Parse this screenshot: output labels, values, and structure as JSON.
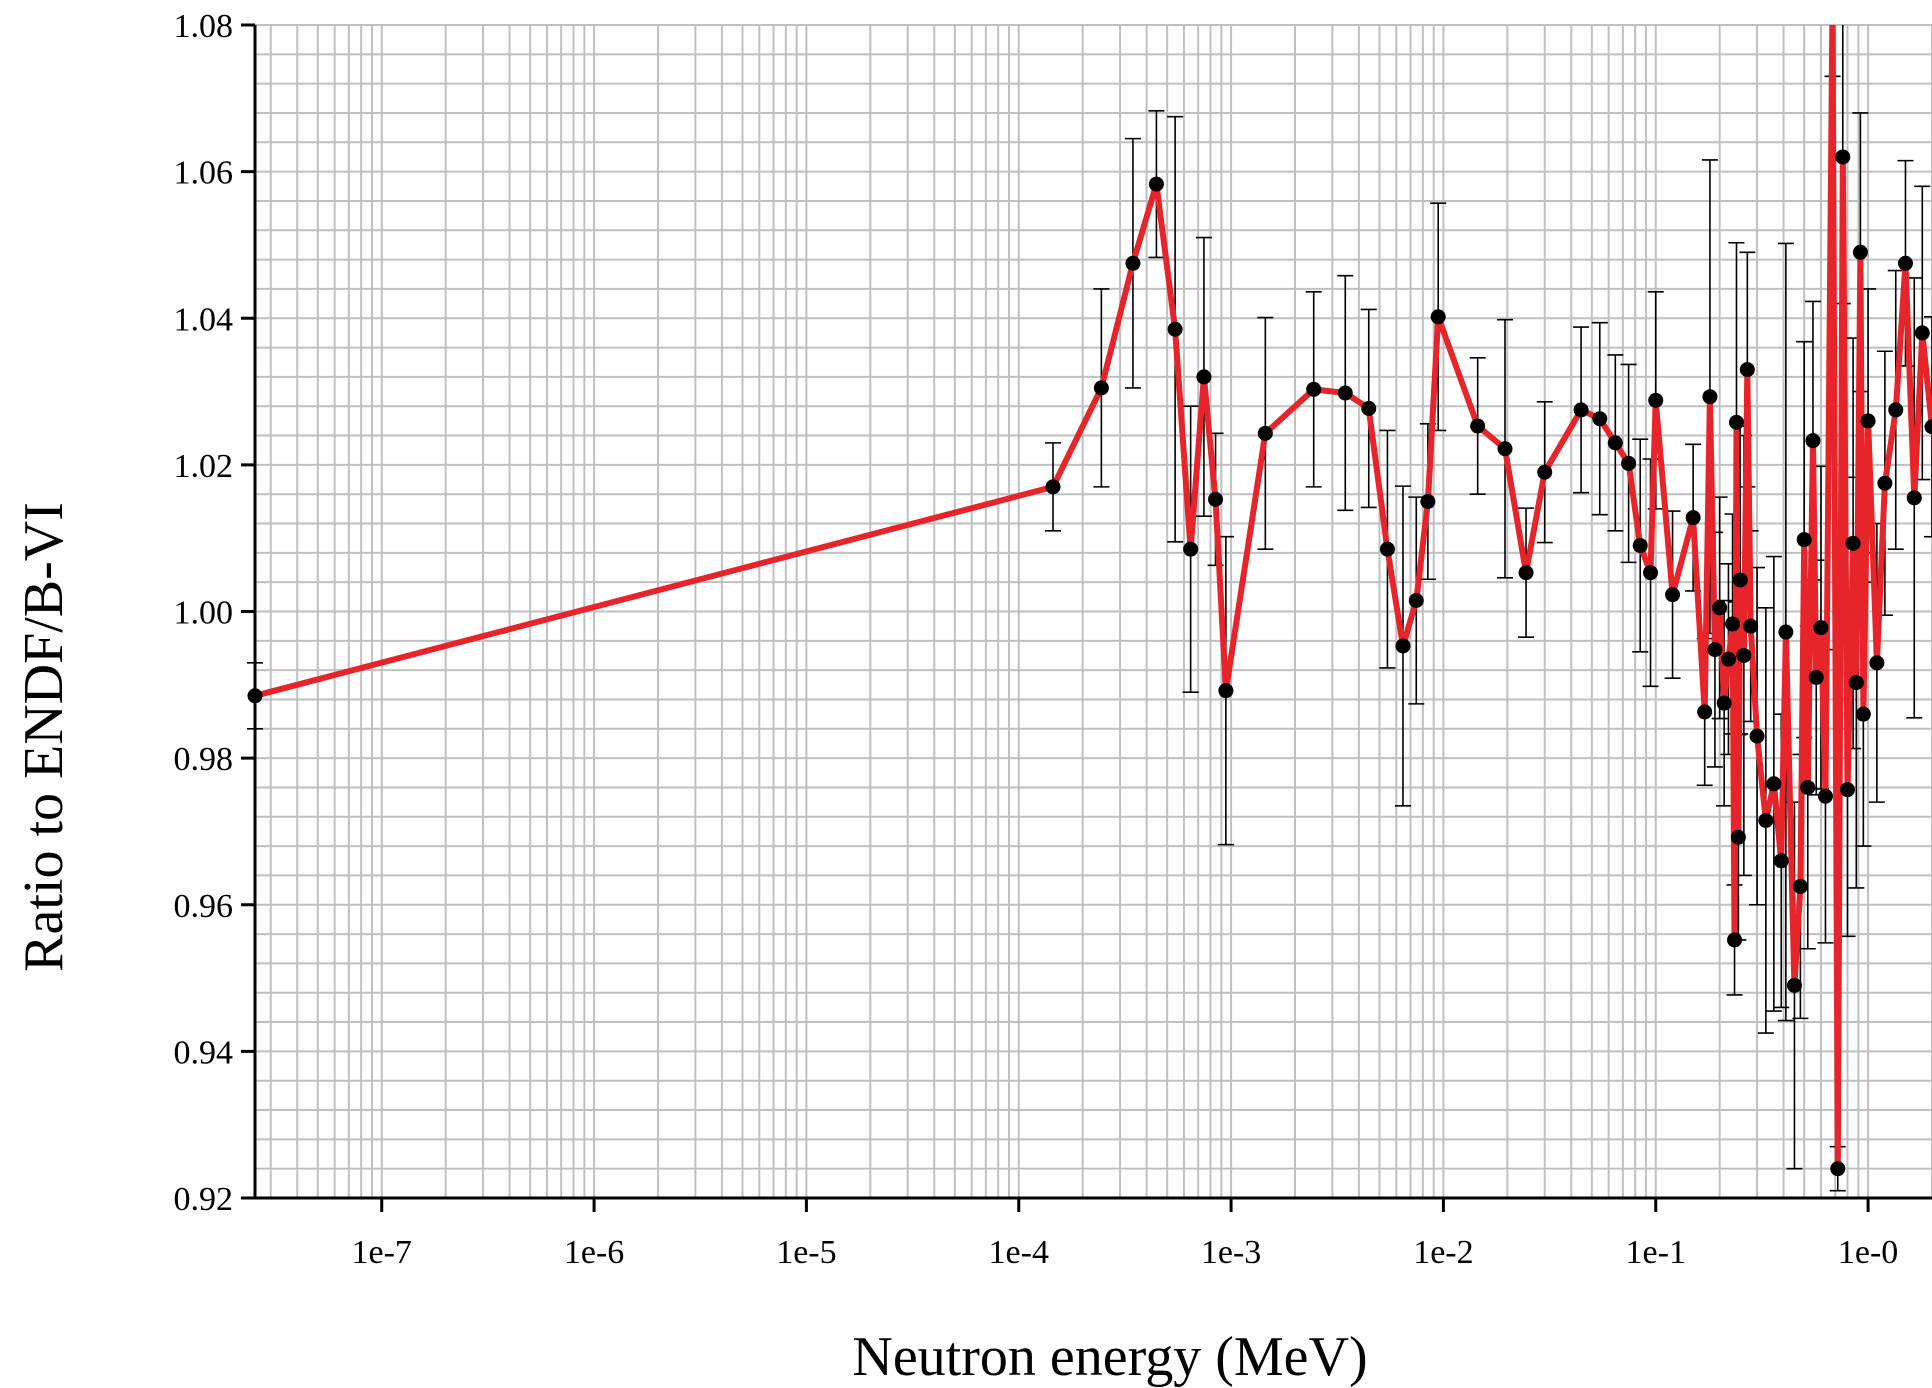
{
  "chart_data": {
    "type": "line",
    "title": "",
    "xlabel": "Neutron energy (MeV)",
    "ylabel": "Ratio to ENDF/B-VI",
    "x_scale": "log",
    "xlim": [
      2.53e-08,
      2.0
    ],
    "ylim": [
      0.92,
      1.08
    ],
    "grid": true,
    "legend": "none",
    "x_ticks": [
      {
        "value": 1e-07,
        "label": "1e-7"
      },
      {
        "value": 1e-06,
        "label": "1e-6"
      },
      {
        "value": 1e-05,
        "label": "1e-5"
      },
      {
        "value": 0.0001,
        "label": "1e-4"
      },
      {
        "value": 0.001,
        "label": "1e-3"
      },
      {
        "value": 0.01,
        "label": "1e-2"
      },
      {
        "value": 0.1,
        "label": "1e-1"
      },
      {
        "value": 1,
        "label": "1e-0"
      }
    ],
    "y_ticks": [
      {
        "value": 0.92,
        "label": "0.92"
      },
      {
        "value": 0.94,
        "label": "0.94"
      },
      {
        "value": 0.96,
        "label": "0.96"
      },
      {
        "value": 0.98,
        "label": "0.98"
      },
      {
        "value": 1.0,
        "label": "1.00"
      },
      {
        "value": 1.02,
        "label": "1.02"
      },
      {
        "value": 1.04,
        "label": "1.04"
      },
      {
        "value": 1.06,
        "label": "1.06"
      },
      {
        "value": 1.08,
        "label": "1.08"
      }
    ],
    "colors": {
      "line": "#e8242b",
      "marker": "#000000",
      "errorbar": "#000000",
      "grid": "#c0c0c0",
      "axis": "#000000"
    },
    "series": [
      {
        "points": [
          {
            "x": 2.53e-08,
            "y": 0.9885,
            "err": 0.0045
          },
          {
            "x": 0.000145,
            "y": 1.017,
            "err": 0.006
          },
          {
            "x": 0.000245,
            "y": 1.0305,
            "err": 0.0135
          },
          {
            "x": 0.000345,
            "y": 1.0475,
            "err": 0.017
          },
          {
            "x": 0.000445,
            "y": 1.0583,
            "err": 0.01
          },
          {
            "x": 0.000545,
            "y": 1.0385,
            "err": 0.029
          },
          {
            "x": 0.000645,
            "y": 1.0085,
            "err": 0.0195
          },
          {
            "x": 0.000745,
            "y": 1.032,
            "err": 0.019
          },
          {
            "x": 0.000845,
            "y": 1.0153,
            "err": 0.009
          },
          {
            "x": 0.000945,
            "y": 0.9892,
            "err": 0.021
          },
          {
            "x": 0.00145,
            "y": 1.0243,
            "err": 0.0158
          },
          {
            "x": 0.00245,
            "y": 1.0303,
            "err": 0.0133
          },
          {
            "x": 0.00345,
            "y": 1.0298,
            "err": 0.016
          },
          {
            "x": 0.00445,
            "y": 1.0277,
            "err": 0.0135
          },
          {
            "x": 0.00545,
            "y": 1.0085,
            "err": 0.0162
          },
          {
            "x": 0.00645,
            "y": 0.9953,
            "err": 0.0218
          },
          {
            "x": 0.00745,
            "y": 1.0015,
            "err": 0.0141
          },
          {
            "x": 0.00845,
            "y": 1.015,
            "err": 0.0106
          },
          {
            "x": 0.00945,
            "y": 1.0402,
            "err": 0.0155
          },
          {
            "x": 0.0145,
            "y": 1.0253,
            "err": 0.0093
          },
          {
            "x": 0.0195,
            "y": 1.0222,
            "err": 0.0176
          },
          {
            "x": 0.0245,
            "y": 1.0053,
            "err": 0.0088
          },
          {
            "x": 0.03,
            "y": 1.019,
            "err": 0.0096
          },
          {
            "x": 0.0445,
            "y": 1.0275,
            "err": 0.0113
          },
          {
            "x": 0.0545,
            "y": 1.0263,
            "err": 0.0131
          },
          {
            "x": 0.0645,
            "y": 1.023,
            "err": 0.012
          },
          {
            "x": 0.0745,
            "y": 1.0202,
            "err": 0.0135
          },
          {
            "x": 0.0845,
            "y": 1.009,
            "err": 0.0145
          },
          {
            "x": 0.0945,
            "y": 1.0053,
            "err": 0.0155
          },
          {
            "x": 0.1,
            "y": 1.0288,
            "err": 0.0148
          },
          {
            "x": 0.12,
            "y": 1.0023,
            "err": 0.0114
          },
          {
            "x": 0.15,
            "y": 1.0128,
            "err": 0.01
          },
          {
            "x": 0.17,
            "y": 0.9863,
            "err": 0.01
          },
          {
            "x": 0.18,
            "y": 1.0293,
            "err": 0.0323
          },
          {
            "x": 0.19,
            "y": 0.9948,
            "err": 0.016
          },
          {
            "x": 0.2,
            "y": 1.0005,
            "err": 0.0151
          },
          {
            "x": 0.21,
            "y": 0.9875,
            "err": 0.014
          },
          {
            "x": 0.22,
            "y": 0.9935,
            "err": 0.013
          },
          {
            "x": 0.23,
            "y": 0.9983,
            "err": 0.015
          },
          {
            "x": 0.235,
            "y": 0.9552,
            "err": 0.0075
          },
          {
            "x": 0.24,
            "y": 1.0258,
            "err": 0.0245
          },
          {
            "x": 0.245,
            "y": 0.9692,
            "err": 0.014
          },
          {
            "x": 0.25,
            "y": 1.0043,
            "err": 0.021
          },
          {
            "x": 0.26,
            "y": 0.994,
            "err": 0.03
          },
          {
            "x": 0.27,
            "y": 1.033,
            "err": 0.016
          },
          {
            "x": 0.28,
            "y": 0.998,
            "err": 0.013
          },
          {
            "x": 0.3,
            "y": 0.983,
            "err": 0.023
          },
          {
            "x": 0.33,
            "y": 0.9715,
            "err": 0.029
          },
          {
            "x": 0.36,
            "y": 0.9765,
            "err": 0.031
          },
          {
            "x": 0.39,
            "y": 0.966,
            "err": 0.02
          },
          {
            "x": 0.41,
            "y": 0.9972,
            "err": 0.053
          },
          {
            "x": 0.45,
            "y": 0.949,
            "err": 0.025
          },
          {
            "x": 0.48,
            "y": 0.9625,
            "err": 0.018
          },
          {
            "x": 0.5,
            "y": 1.0098,
            "err": 0.027
          },
          {
            "x": 0.52,
            "y": 0.976,
            "err": 0.022
          },
          {
            "x": 0.55,
            "y": 1.0233,
            "err": 0.019
          },
          {
            "x": 0.57,
            "y": 0.991,
            "err": 0.016
          },
          {
            "x": 0.6,
            "y": 0.9978,
            "err": 0.022
          },
          {
            "x": 0.63,
            "y": 0.9748,
            "err": 0.02
          },
          {
            "x": 0.68,
            "y": 1.083,
            "err": 0.01
          },
          {
            "x": 0.72,
            "y": 0.924,
            "err": 0.003
          },
          {
            "x": 0.76,
            "y": 1.062,
            "err": 0.02
          },
          {
            "x": 0.8,
            "y": 0.9757,
            "err": 0.02
          },
          {
            "x": 0.85,
            "y": 1.0093,
            "err": 0.028
          },
          {
            "x": 0.88,
            "y": 0.9903,
            "err": 0.028
          },
          {
            "x": 0.92,
            "y": 1.049,
            "err": 0.019
          },
          {
            "x": 0.95,
            "y": 0.986,
            "err": 0.018
          },
          {
            "x": 1.0,
            "y": 1.026,
            "err": 0.018
          },
          {
            "x": 1.1,
            "y": 0.993,
            "err": 0.019
          },
          {
            "x": 1.2,
            "y": 1.0175,
            "err": 0.018
          },
          {
            "x": 1.35,
            "y": 1.0275,
            "err": 0.019
          },
          {
            "x": 1.5,
            "y": 1.0475,
            "err": 0.014
          },
          {
            "x": 1.65,
            "y": 1.0155,
            "err": 0.03
          },
          {
            "x": 1.8,
            "y": 1.038,
            "err": 0.02
          },
          {
            "x": 2.0,
            "y": 1.0252,
            "err": 0.015
          }
        ]
      }
    ]
  }
}
